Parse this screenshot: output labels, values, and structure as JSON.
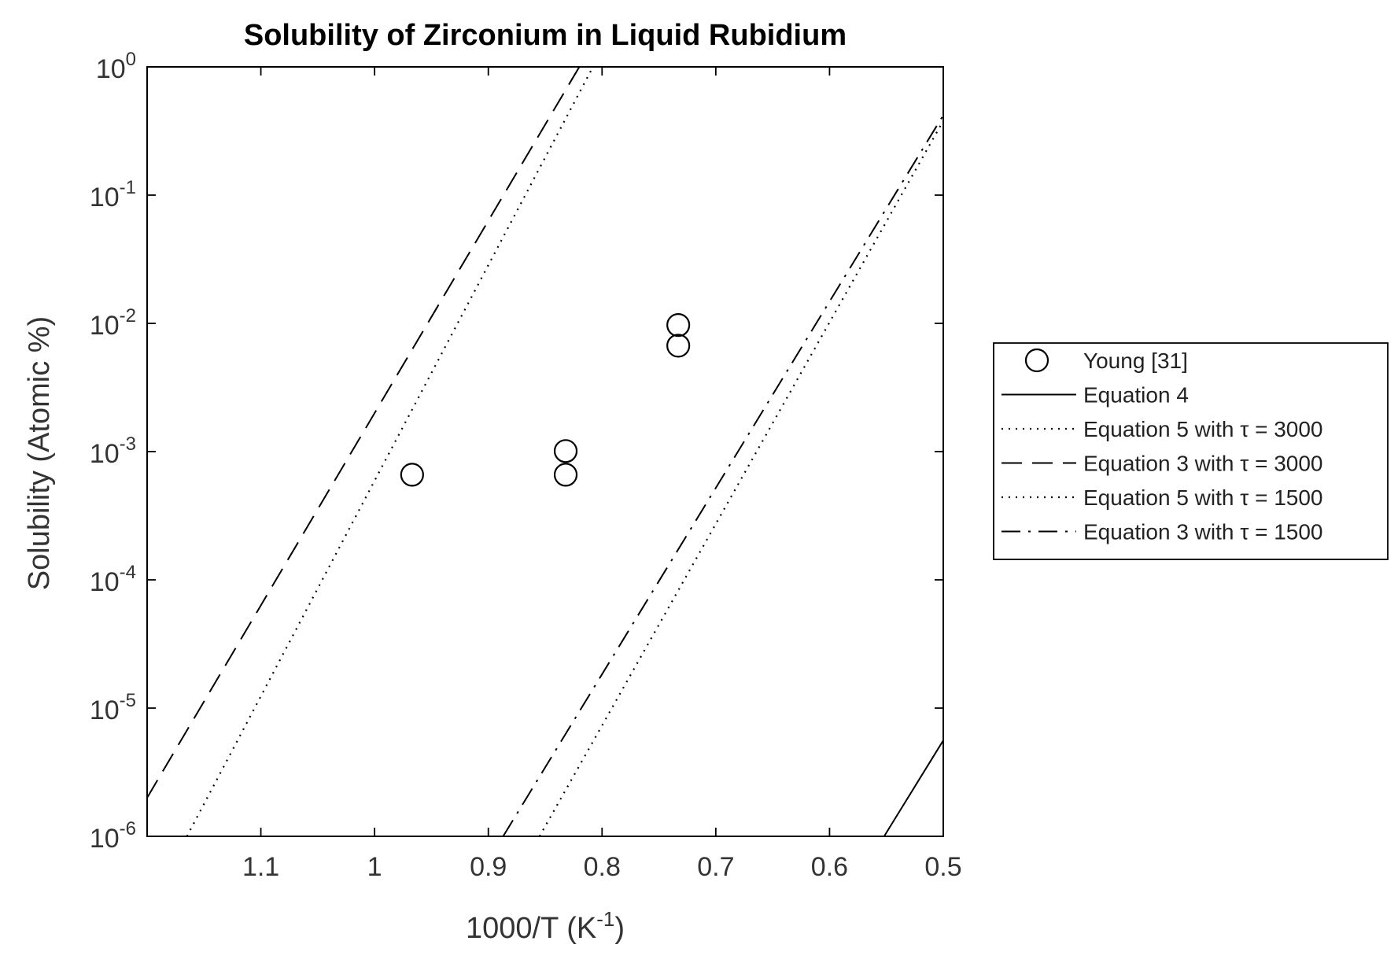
{
  "chart_data": {
    "type": "scatter",
    "title": "Solubility of Zirconium in Liquid Rubidium",
    "xlabel": {
      "base": "1000/T (K",
      "sup": "-1",
      "tail": ")"
    },
    "ylabel": "Solubility (Atomic %)",
    "xlim": [
      1.2,
      0.5
    ],
    "x_reversed": true,
    "ylim": [
      1e-06,
      1
    ],
    "y_scale": "log",
    "x_ticks": [
      1.1,
      1.0,
      0.9,
      0.8,
      0.7,
      0.6,
      0.5
    ],
    "x_tick_labels": [
      "1.1",
      "1",
      "0.9",
      "0.8",
      "0.7",
      "0.6",
      "0.5"
    ],
    "y_tick_labels": [
      {
        "base": "10",
        "exp": "-6"
      },
      {
        "base": "10",
        "exp": "-5"
      },
      {
        "base": "10",
        "exp": "-4"
      },
      {
        "base": "10",
        "exp": "-3"
      },
      {
        "base": "10",
        "exp": "-2"
      },
      {
        "base": "10",
        "exp": "-1"
      },
      {
        "base": "10",
        "exp": "0"
      }
    ],
    "grid": false,
    "legend_position": "outside-right",
    "series": [
      {
        "name": "Young [31]",
        "kind": "marker",
        "marker": "circle",
        "points": [
          {
            "x": 0.967,
            "y": 0.00066
          },
          {
            "x": 0.832,
            "y": 0.00066
          },
          {
            "x": 0.832,
            "y": 0.00101
          },
          {
            "x": 0.733,
            "y": 0.0067
          },
          {
            "x": 0.733,
            "y": 0.0097
          }
        ]
      },
      {
        "name": "Equation 4",
        "kind": "line",
        "dash": "solid",
        "points": [
          {
            "x": 0.552,
            "y": 1e-06
          },
          {
            "x": 0.5,
            "y": 5.6e-06
          }
        ]
      },
      {
        "name": "Equation 5 with τ = 3000",
        "kind": "line",
        "dash": "dotted",
        "points": [
          {
            "x": 1.165,
            "y": 1e-06
          },
          {
            "x": 0.808,
            "y": 1.0
          }
        ]
      },
      {
        "name": "Equation 3 with τ = 3000",
        "kind": "line",
        "dash": "dashed",
        "points": [
          {
            "x": 1.2,
            "y": 2e-06
          },
          {
            "x": 0.82,
            "y": 1.0
          }
        ]
      },
      {
        "name": "Equation 5 with τ = 1500",
        "kind": "line",
        "dash": "dotted",
        "points": [
          {
            "x": 0.855,
            "y": 1e-06
          },
          {
            "x": 0.5,
            "y": 0.38
          }
        ]
      },
      {
        "name": "Equation 3 with τ = 1500",
        "kind": "line",
        "dash": "dashdot",
        "points": [
          {
            "x": 0.887,
            "y": 1e-06
          },
          {
            "x": 0.5,
            "y": 0.42
          }
        ]
      }
    ]
  },
  "colors": {
    "line": "#000000",
    "axis": "#000000",
    "background": "#ffffff"
  }
}
